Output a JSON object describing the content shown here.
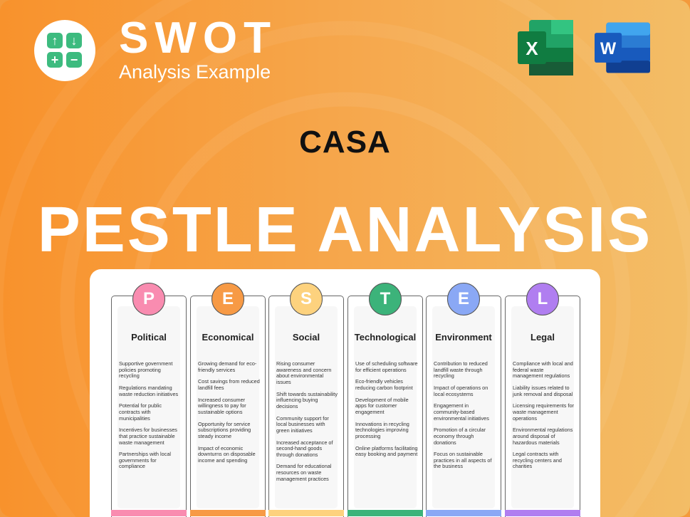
{
  "brand": {
    "title": "SWOT",
    "subtitle": "Analysis Example",
    "logo_icons": [
      "arrow-up-icon",
      "arrow-down-icon",
      "plus-icon",
      "minus-icon"
    ]
  },
  "apps": [
    {
      "name": "excel-icon",
      "letter": "X",
      "color": "#1f7a45"
    },
    {
      "name": "word-icon",
      "letter": "W",
      "color": "#2b5fc4"
    }
  ],
  "company": "CASA",
  "heading": "PESTLE ANALYSIS",
  "columns": [
    {
      "letter": "P",
      "label": "Political",
      "color": "#f98cb0",
      "items": [
        "Supportive government policies promoting recycling",
        "Regulations mandating waste reduction initiatives",
        "Potential for public contracts with municipalities",
        "Incentives for businesses that practice sustainable waste management",
        "Partnerships with local governments for compliance"
      ]
    },
    {
      "letter": "E",
      "label": "Economical",
      "color": "#f79a45",
      "items": [
        "Growing demand for eco-friendly services",
        "Cost savings from reduced landfill fees",
        "Increased consumer willingness to pay for sustainable options",
        "Opportunity for service subscriptions providing steady income",
        "Impact of economic downturns on disposable income and spending"
      ]
    },
    {
      "letter": "S",
      "label": "Social",
      "color": "#fdd27e",
      "items": [
        "Rising consumer awareness and concern about environmental issues",
        "Shift towards sustainability influencing buying decisions",
        "Community support for local businesses with green initiatives",
        "Increased acceptance of second-hand goods through donations",
        "Demand for educational resources on waste management practices"
      ]
    },
    {
      "letter": "T",
      "label": "Technological",
      "color": "#3cb37a",
      "items": [
        "Use of scheduling software for efficient operations",
        "Eco-friendly vehicles reducing carbon footprint",
        "Development of mobile apps for customer engagement",
        "Innovations in recycling technologies improving processing",
        "Online platforms facilitating easy booking and payment"
      ]
    },
    {
      "letter": "E",
      "label": "Environment",
      "color": "#8aa8f5",
      "items": [
        "Contribution to reduced landfill waste through recycling",
        "Impact of operations on local ecosystems",
        "Engagement in community-based environmental initiatives",
        "Promotion of a circular economy through donations",
        "Focus on sustainable practices in all aspects of the business"
      ]
    },
    {
      "letter": "L",
      "label": "Legal",
      "color": "#b07ef0",
      "items": [
        "Compliance with local and federal waste management regulations",
        "Liability issues related to junk removal and disposal",
        "Licensing requirements for waste management operations",
        "Environmental regulations around disposal of hazardous materials",
        "Legal contracts with recycling centers and charities"
      ]
    }
  ]
}
